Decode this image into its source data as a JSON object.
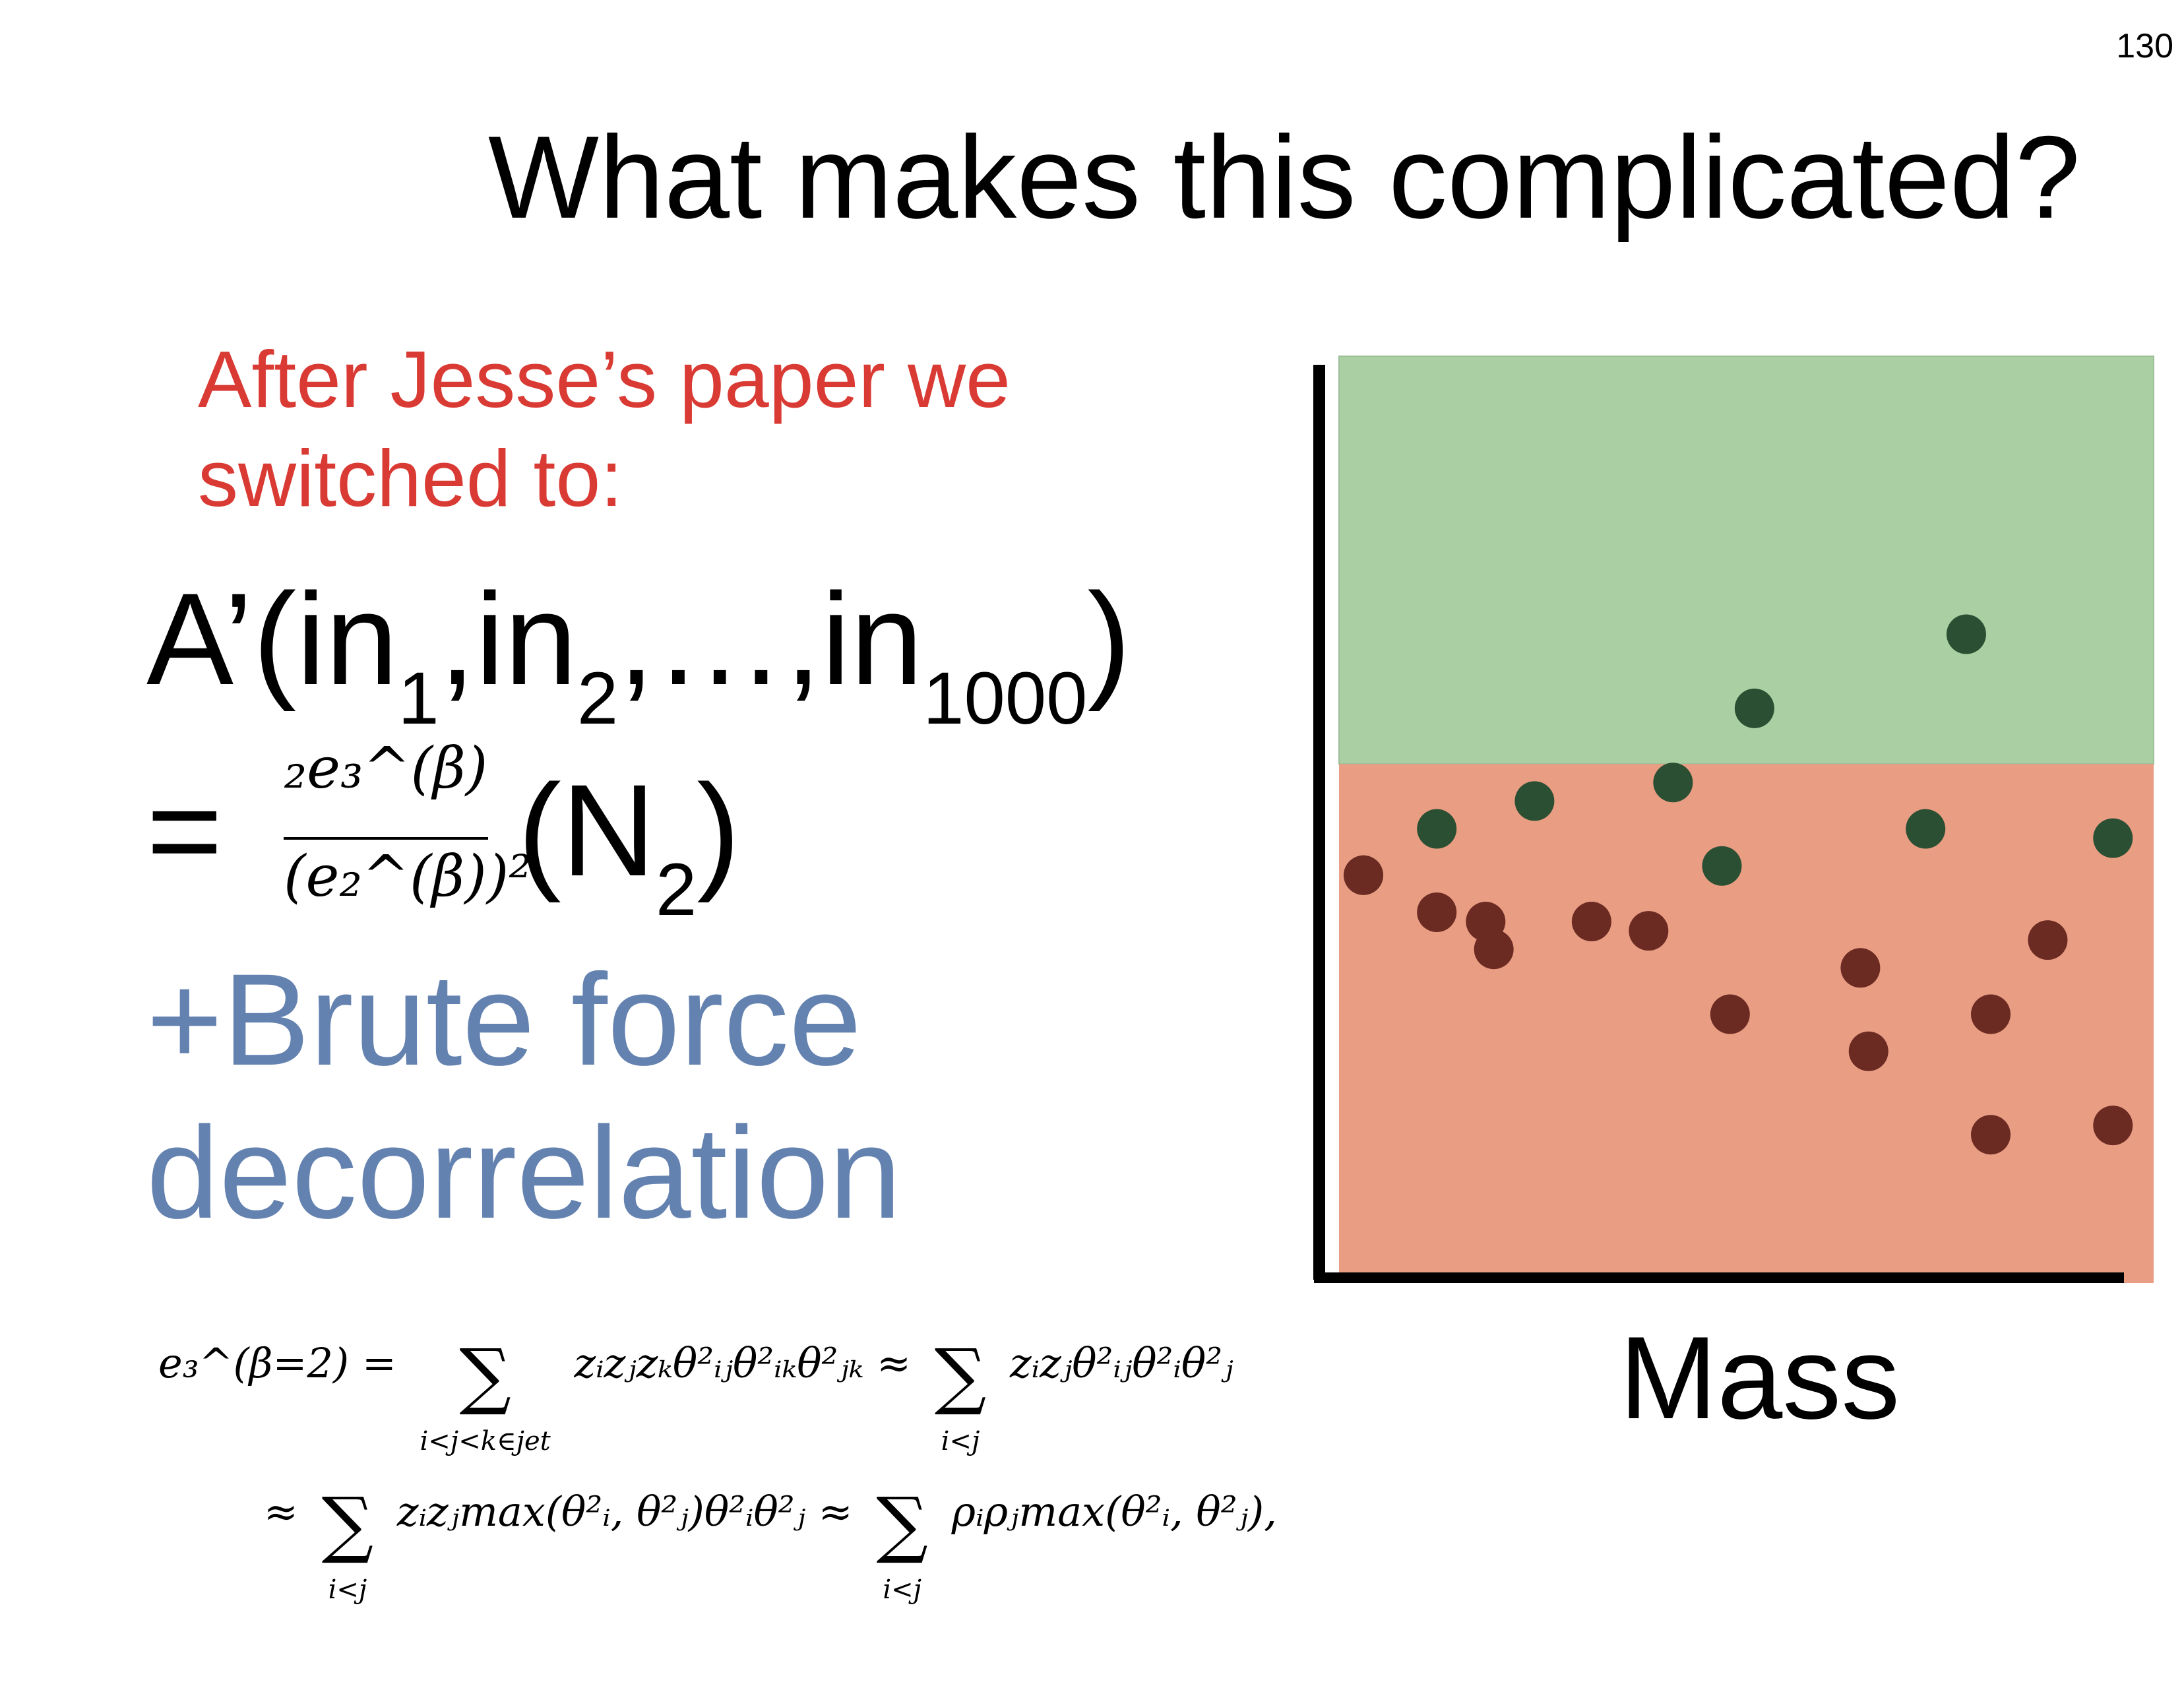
{
  "slide": {
    "number": "130",
    "title": "What makes this complicated?",
    "subtitle_line1": "After Jesse’s paper we",
    "subtitle_line2": "switched to:",
    "formula_prefix": "A’(in",
    "sub1": "1",
    "mid1": ",in",
    "sub2": "2",
    "mid2": ",…,in",
    "sub3": "1000",
    "close": ")",
    "equals": "=",
    "frac_num": "₂e₃^(β)",
    "frac_den": "(e₂^(β))²",
    "n2_open": "(N",
    "n2_sub": "2",
    "n2_close": ")",
    "brute_line1": "+Brute force",
    "brute_line2": "decorrelation",
    "eq1_lhs": "e₃^(β=2) =",
    "eq1_sum1_under": "i<j<k∈jet",
    "eq1_term1": "zᵢzⱼzₖθ²ᵢⱼθ²ᵢₖθ²ⱼₖ ≈",
    "eq1_sum2_under": "i<j",
    "eq1_term2": "zᵢzⱼθ²ᵢⱼθ²ᵢθ²ⱼ",
    "eq2_approx": "≈",
    "eq2_sum1_under": "i<j",
    "eq2_term1": "zᵢzⱼmax(θ²ᵢ, θ²ⱼ)θ²ᵢθ²ⱼ ≈",
    "eq2_sum2_under": "i<j",
    "eq2_term2": "ρᵢρⱼmax(θ²ᵢ, θ²ⱼ),",
    "sigma": "∑"
  },
  "chart_data": {
    "type": "scatter",
    "xlabel": "Mass",
    "colors": {
      "upper_region": "#a9cfa2",
      "lower_region": "#e99e84",
      "upper_points": "#2a4f33",
      "lower_points": "#6b2a22"
    },
    "threshold_fraction": 0.56,
    "upper_points": [
      [
        0.03,
        0.44
      ],
      [
        0.12,
        0.49
      ],
      [
        0.24,
        0.52
      ],
      [
        0.41,
        0.54
      ],
      [
        0.51,
        0.62
      ],
      [
        0.47,
        0.45
      ],
      [
        0.72,
        0.49
      ],
      [
        0.77,
        0.7
      ],
      [
        0.95,
        0.48
      ]
    ],
    "lower_points": [
      [
        0.03,
        0.44
      ],
      [
        0.12,
        0.4
      ],
      [
        0.18,
        0.39
      ],
      [
        0.19,
        0.36
      ],
      [
        0.31,
        0.39
      ],
      [
        0.38,
        0.38
      ],
      [
        0.48,
        0.29
      ],
      [
        0.64,
        0.34
      ],
      [
        0.65,
        0.25
      ],
      [
        0.8,
        0.29
      ],
      [
        0.8,
        0.16
      ],
      [
        0.87,
        0.37
      ],
      [
        0.95,
        0.17
      ]
    ]
  }
}
